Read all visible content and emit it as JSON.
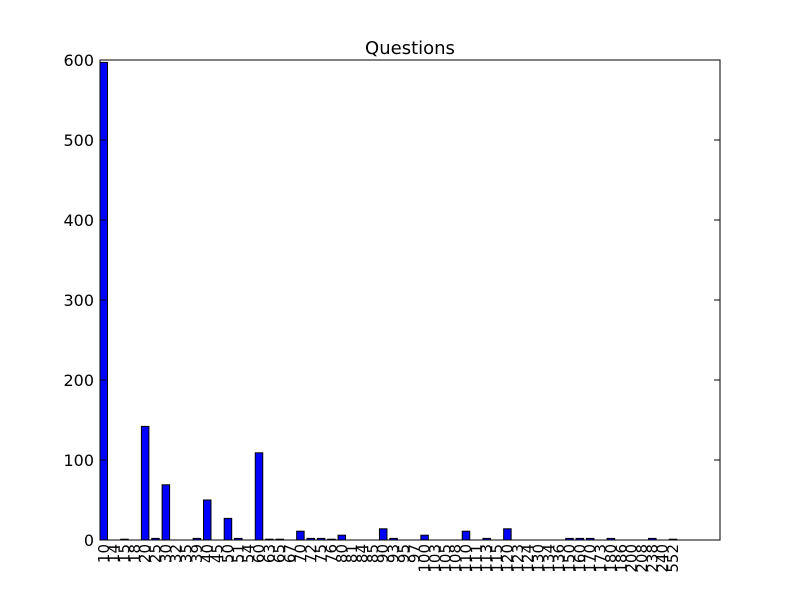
{
  "chart_data": {
    "type": "bar",
    "title": "Questions",
    "xlabel": "",
    "ylabel": "",
    "ylim": [
      0,
      600
    ],
    "yticks": [
      0,
      100,
      200,
      300,
      400,
      500,
      600
    ],
    "grid": false,
    "bar_color": "#0000ff",
    "categories": [
      "10",
      "14",
      "15",
      "18",
      "20",
      "25",
      "30",
      "32",
      "35",
      "39",
      "40",
      "45",
      "50",
      "51",
      "54",
      "60",
      "63",
      "65",
      "67",
      "70",
      "72",
      "75",
      "76",
      "80",
      "81",
      "84",
      "85",
      "90",
      "93",
      "95",
      "97",
      "100",
      "103",
      "105",
      "108",
      "110",
      "111",
      "113",
      "115",
      "120",
      "123",
      "124",
      "130",
      "134",
      "136",
      "150",
      "160",
      "170",
      "173",
      "180",
      "186",
      "200",
      "208",
      "238",
      "240",
      "552"
    ],
    "values": [
      597,
      0,
      1,
      0,
      142,
      2,
      69,
      0,
      0,
      2,
      50,
      0,
      27,
      2,
      0,
      109,
      1,
      1,
      0,
      11,
      2,
      2,
      1,
      6,
      0,
      0,
      0,
      14,
      2,
      0,
      0,
      6,
      0,
      0,
      0,
      11,
      0,
      2,
      0,
      14,
      0,
      0,
      0,
      0,
      0,
      2,
      2,
      2,
      0,
      2,
      0,
      0,
      0,
      2,
      0,
      1
    ]
  }
}
